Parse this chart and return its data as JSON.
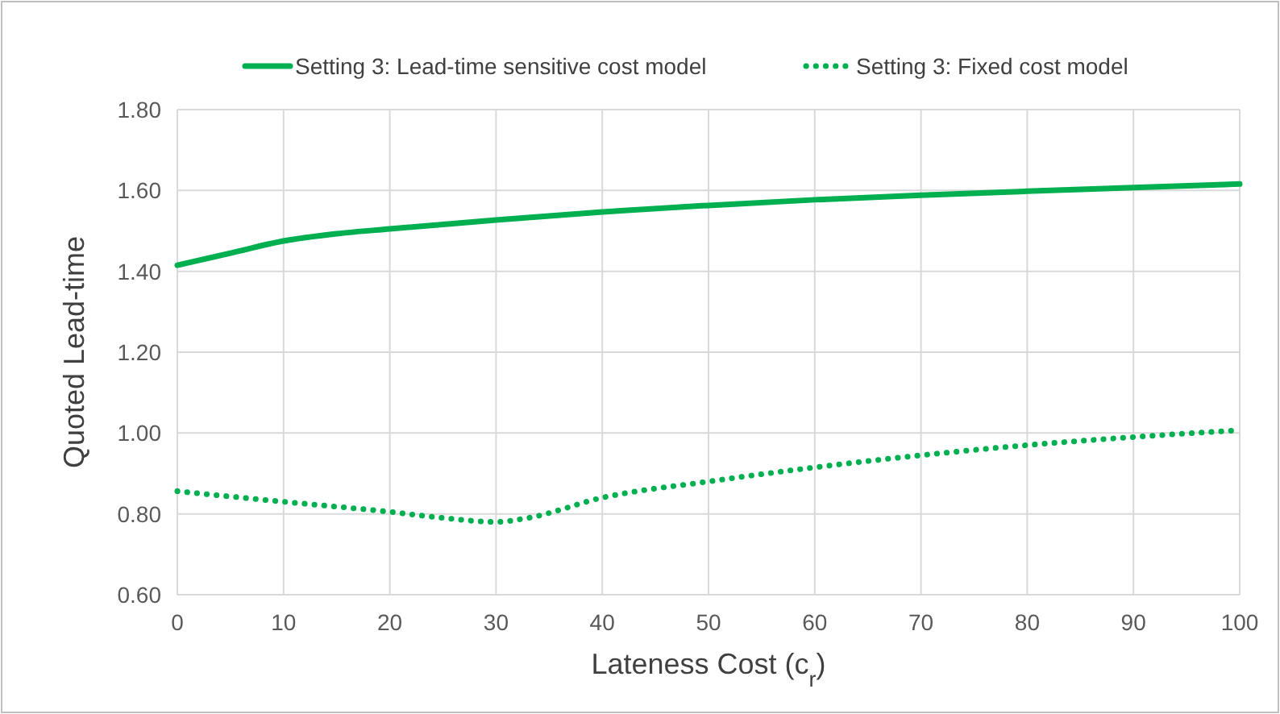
{
  "chart_data": {
    "type": "line",
    "xlabel": "Lateness Cost (c$_{r}$)",
    "ylabel": "Quoted Lead-time",
    "xlim": [
      0,
      100
    ],
    "xticks": [
      0,
      10,
      20,
      30,
      40,
      50,
      60,
      70,
      80,
      90,
      100
    ],
    "ylim": [
      0.6,
      1.8
    ],
    "yticks": [
      {
        "value": 0.6,
        "label": "0.60"
      },
      {
        "value": 0.8,
        "label": "0.80"
      },
      {
        "value": 1.0,
        "label": "1.00"
      },
      {
        "value": 1.2,
        "label": "1.20"
      },
      {
        "value": 1.4,
        "label": "1.40"
      },
      {
        "value": 1.6,
        "label": "1.60"
      },
      {
        "value": 1.8,
        "label": "1.80"
      }
    ],
    "grid": true,
    "legend": "top",
    "series": [
      {
        "name": "Setting 3: Lead-time sensitive cost model",
        "color": "#00b050",
        "line_style": "solid",
        "x": [
          0,
          5,
          10,
          15,
          20,
          30,
          40,
          50,
          60,
          70,
          80,
          90,
          100
        ],
        "values": [
          1.415,
          1.445,
          1.475,
          1.493,
          1.505,
          1.527,
          1.547,
          1.563,
          1.577,
          1.588,
          1.598,
          1.607,
          1.616
        ]
      },
      {
        "name": "Setting 3: Fixed cost model",
        "color": "#00b050",
        "line_style": "dotted",
        "x": [
          0,
          10,
          20,
          25,
          30,
          33,
          40,
          50,
          60,
          70,
          80,
          90,
          100
        ],
        "values": [
          0.856,
          0.83,
          0.805,
          0.79,
          0.78,
          0.79,
          0.84,
          0.88,
          0.915,
          0.945,
          0.97,
          0.99,
          1.007
        ]
      }
    ]
  }
}
